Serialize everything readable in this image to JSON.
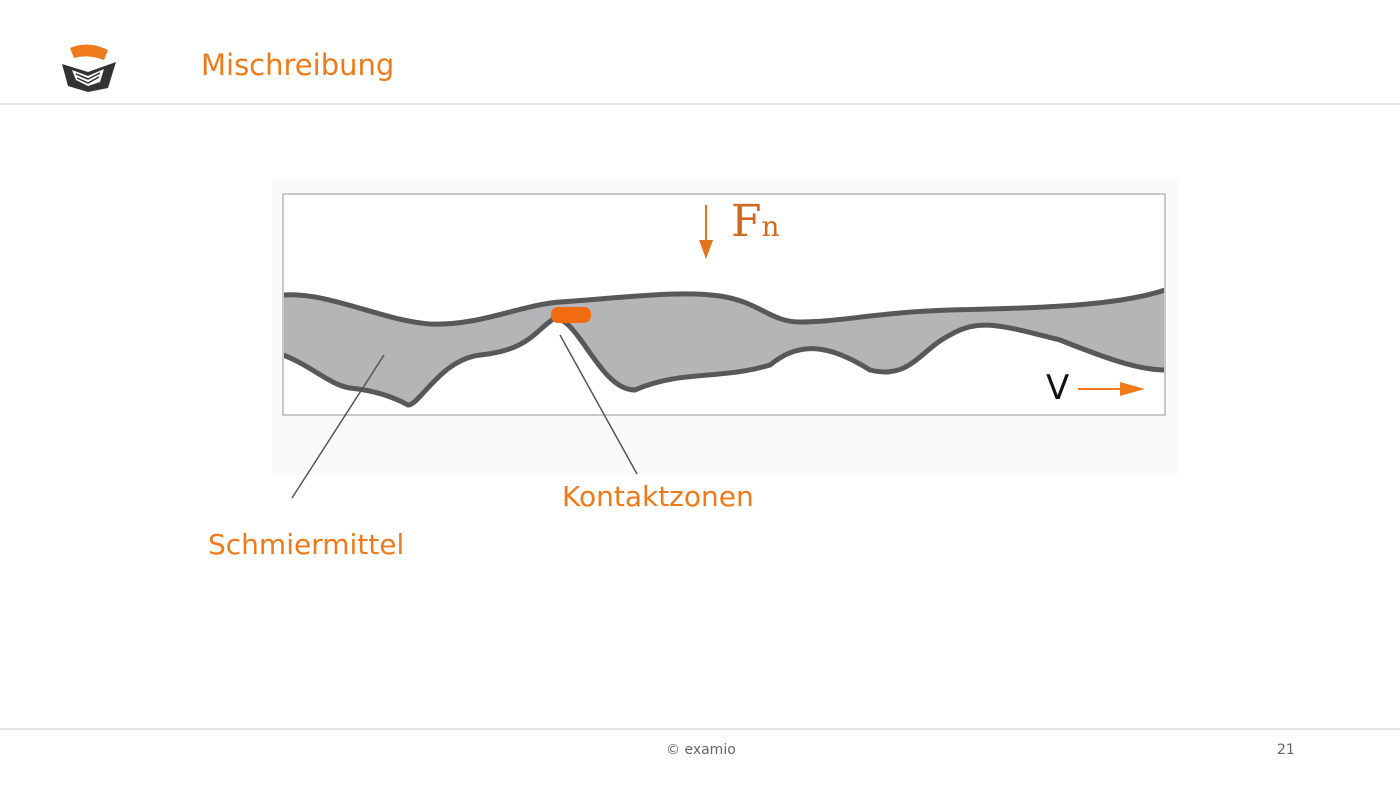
{
  "header": {
    "title": "Mischreibung"
  },
  "diagram": {
    "force_label": {
      "symbol": "F",
      "subscript": "n"
    },
    "velocity_label": "V",
    "contact_label": "Kontaktzonen",
    "lubricant_label": "Schmiermittel"
  },
  "footer": {
    "copyright": "© examio",
    "page_number": 21
  }
}
